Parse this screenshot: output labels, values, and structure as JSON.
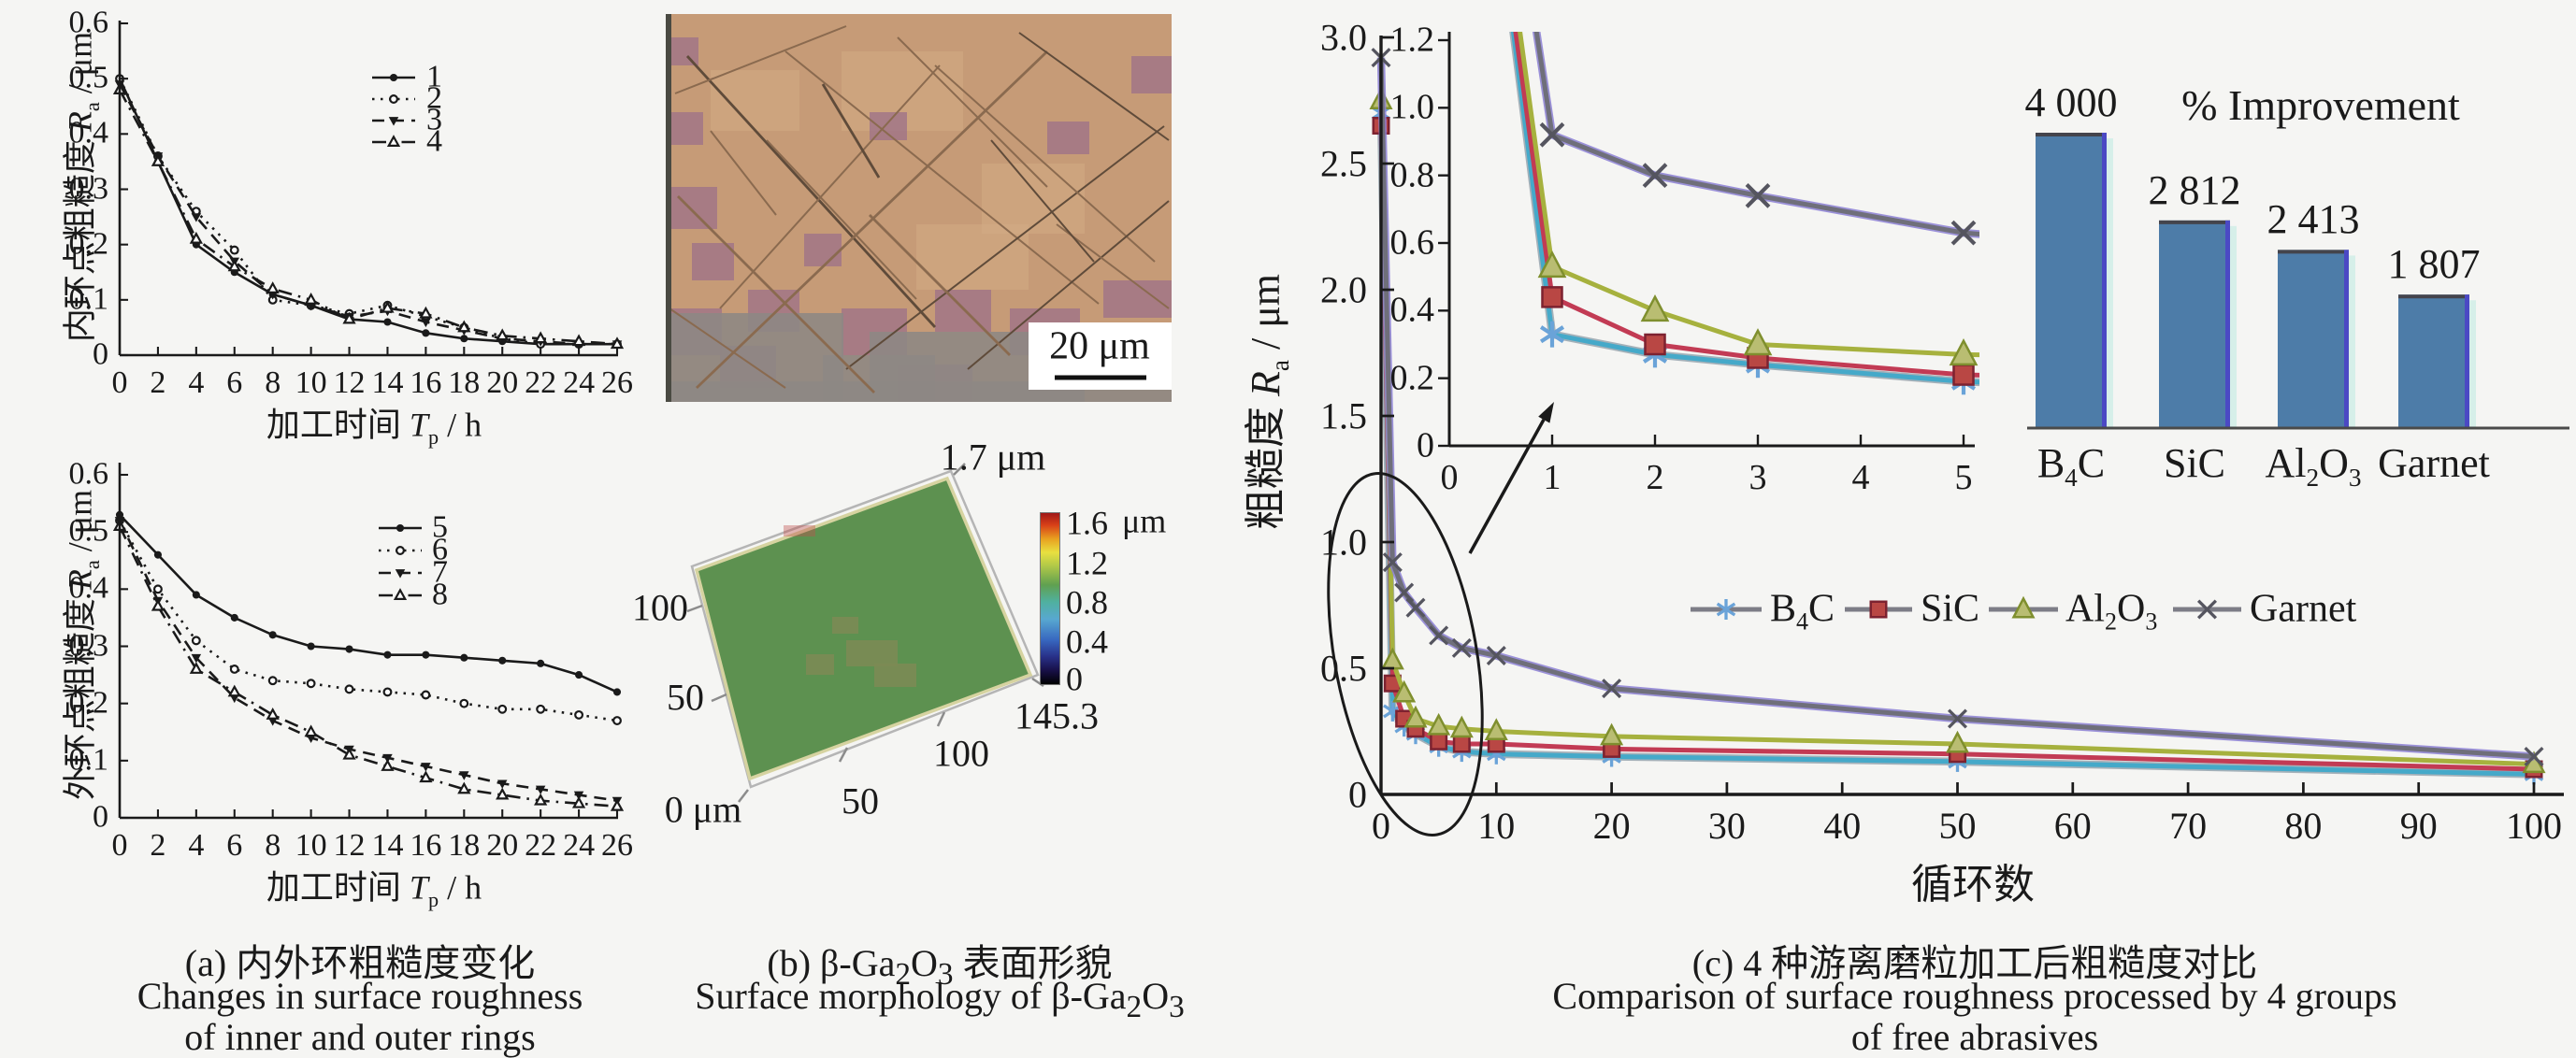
{
  "figure": {
    "background": "#f5f5f3",
    "captions": {
      "a": [
        "(a) 内外环粗糙度变化",
        "Changes in surface roughness",
        "of inner and outer rings"
      ],
      "b": [
        "(b) β-Ga_{2}O_{3} 表面形貌",
        "Surface morphology of β-Ga_{2}O_{3}"
      ],
      "c": [
        "(c) 4 种游离磨粒加工后粗糙度对比",
        "Comparison of surface roughness processed by 4 groups",
        "of free abrasives"
      ]
    }
  },
  "micrograph": {
    "scale_label": "20 μm"
  },
  "surface_plot": {
    "height_label": "1.7 μm",
    "colorbar_ticks": [
      "1.6",
      "1.2",
      "0.8",
      "0.4",
      "0"
    ],
    "colorbar_unit": "μm",
    "x_max_label": "145.3",
    "x_ticks": [
      "50",
      "100"
    ],
    "y_ticks": [
      "100",
      "50"
    ],
    "origin_label": "0 μm"
  },
  "chart_data": [
    {
      "id": "inner-ring-roughness",
      "type": "line",
      "xlabel": "加工时间 ~T~_{p} / h",
      "ylabel": "内环点粗糙度 ~R~_{a} / μm",
      "xlim": [
        0,
        26
      ],
      "ylim": [
        0,
        0.6
      ],
      "xticks": [
        "0",
        "2",
        "4",
        "6",
        "8",
        "10",
        "12",
        "14",
        "16",
        "18",
        "20",
        "22",
        "24",
        "26"
      ],
      "yticks": [
        "0",
        "0.1",
        "0.2",
        "0.3",
        "0.4",
        "0.5",
        "0.6"
      ],
      "legend_position": "upper right",
      "grid": false,
      "x": [
        0,
        2,
        4,
        6,
        8,
        10,
        12,
        14,
        16,
        18,
        20,
        22,
        24,
        26
      ],
      "series": [
        {
          "name": "1",
          "marker": "dot",
          "linestyle": "solid",
          "values": [
            0.5,
            0.35,
            0.2,
            0.15,
            0.11,
            0.09,
            0.065,
            0.06,
            0.04,
            0.03,
            0.025,
            0.02,
            0.02,
            0.02
          ]
        },
        {
          "name": "2",
          "marker": "circle",
          "linestyle": "dotted",
          "values": [
            0.5,
            0.36,
            0.26,
            0.19,
            0.1,
            0.09,
            0.075,
            0.09,
            0.07,
            0.05,
            0.03,
            0.02,
            0.02,
            0.02
          ]
        },
        {
          "name": "3",
          "marker": "tri-down",
          "linestyle": "dashed",
          "values": [
            0.49,
            0.36,
            0.25,
            0.17,
            0.11,
            0.09,
            0.07,
            0.08,
            0.06,
            0.045,
            0.03,
            0.025,
            0.02,
            0.02
          ]
        },
        {
          "name": "4",
          "marker": "tri-up",
          "linestyle": "dashdot",
          "values": [
            0.48,
            0.35,
            0.21,
            0.16,
            0.12,
            0.1,
            0.065,
            0.085,
            0.075,
            0.05,
            0.035,
            0.03,
            0.025,
            0.02
          ]
        }
      ]
    },
    {
      "id": "outer-ring-roughness",
      "type": "line",
      "xlabel": "加工时间 ~T~_{p} / h",
      "ylabel": "外环点粗糙度 ~R~_{a} / μm",
      "xlim": [
        0,
        26
      ],
      "ylim": [
        0,
        0.6
      ],
      "xticks": [
        "0",
        "2",
        "4",
        "6",
        "8",
        "10",
        "12",
        "14",
        "16",
        "18",
        "20",
        "22",
        "24",
        "26"
      ],
      "yticks": [
        "0",
        "0.1",
        "0.2",
        "0.3",
        "0.4",
        "0.5",
        "0.6"
      ],
      "legend_position": "upper right",
      "grid": false,
      "x": [
        0,
        2,
        4,
        6,
        8,
        10,
        12,
        14,
        16,
        18,
        20,
        22,
        24,
        26
      ],
      "series": [
        {
          "name": "5",
          "marker": "dot",
          "linestyle": "solid",
          "values": [
            0.53,
            0.46,
            0.39,
            0.35,
            0.32,
            0.3,
            0.295,
            0.285,
            0.285,
            0.28,
            0.275,
            0.27,
            0.25,
            0.22
          ]
        },
        {
          "name": "6",
          "marker": "circle",
          "linestyle": "dotted",
          "values": [
            0.52,
            0.4,
            0.31,
            0.26,
            0.24,
            0.235,
            0.225,
            0.22,
            0.215,
            0.2,
            0.19,
            0.19,
            0.18,
            0.17
          ]
        },
        {
          "name": "7",
          "marker": "tri-down",
          "linestyle": "dashed",
          "values": [
            0.52,
            0.38,
            0.28,
            0.21,
            0.17,
            0.14,
            0.12,
            0.105,
            0.09,
            0.075,
            0.06,
            0.05,
            0.04,
            0.03
          ]
        },
        {
          "name": "8",
          "marker": "tri-up",
          "linestyle": "dashdot",
          "values": [
            0.51,
            0.37,
            0.26,
            0.22,
            0.18,
            0.15,
            0.11,
            0.09,
            0.07,
            0.05,
            0.04,
            0.03,
            0.025,
            0.02
          ]
        }
      ]
    },
    {
      "id": "free-abrasive-comparison",
      "type": "line",
      "xlabel": "循环数",
      "ylabel": "粗糙度 ~R~_{a} / μm",
      "xlim": [
        0,
        100
      ],
      "ylim": [
        0,
        3.0
      ],
      "xticks": [
        "0",
        "10",
        "20",
        "30",
        "40",
        "50",
        "60",
        "70",
        "80",
        "90",
        "100"
      ],
      "yticks": [
        "0",
        "0.5",
        "1.0",
        "1.5",
        "2.0",
        "2.5",
        "3.0"
      ],
      "legend_position": "center",
      "grid": false,
      "x": [
        0,
        1,
        2,
        3,
        5,
        7,
        10,
        20,
        50,
        100
      ],
      "series": [
        {
          "name": "B_{4}C",
          "marker": "asterisk",
          "linestyle": "solid",
          "color": "#45a9c9",
          "marker_color": "#6aa3d8",
          "shadow": "#97a4ae",
          "values": [
            2.7,
            0.33,
            0.27,
            0.24,
            0.19,
            0.17,
            0.16,
            0.15,
            0.13,
            0.08
          ]
        },
        {
          "name": "SiC",
          "marker": "square",
          "linestyle": "solid",
          "color": "#c23b54",
          "marker_color": "#b94744",
          "marker_edge": "#7d2230",
          "values": [
            2.65,
            0.44,
            0.3,
            0.26,
            0.21,
            0.2,
            0.2,
            0.18,
            0.16,
            0.1
          ]
        },
        {
          "name": "Al_{2}O_{3}",
          "marker": "tri-up-filled",
          "linestyle": "solid",
          "color": "#a6b13e",
          "marker_color": "#b9bd72",
          "marker_edge": "#7f8f2e",
          "values": [
            2.75,
            0.53,
            0.4,
            0.3,
            0.27,
            0.26,
            0.25,
            0.23,
            0.2,
            0.12
          ]
        },
        {
          "name": "Garnet",
          "marker": "x",
          "linestyle": "solid",
          "color": "#6f6f7a",
          "marker_color": "#55555f",
          "shadow": "#8b7fd4",
          "values": [
            2.92,
            0.92,
            0.8,
            0.74,
            0.63,
            0.58,
            0.55,
            0.42,
            0.3,
            0.15
          ]
        }
      ]
    },
    {
      "id": "free-abrasive-zoom-inset",
      "type": "line",
      "xlabel": "",
      "ylabel": "",
      "xlim": [
        0,
        5
      ],
      "ylim": [
        0,
        1.2
      ],
      "xticks": [
        "0",
        "1",
        "2",
        "3",
        "4",
        "5"
      ],
      "yticks": [
        "0",
        "0.2",
        "0.4",
        "0.6",
        "0.8",
        "1.0",
        "1.2"
      ],
      "grid": false,
      "series_from": "free-abrasive-comparison"
    },
    {
      "id": "improvement-bars",
      "type": "bar",
      "title": "% Improvement",
      "categories": [
        "B_{4}C",
        "SiC",
        "Al_{2}O_{3}",
        "Garnet"
      ],
      "values": [
        4000,
        2812,
        2413,
        1807
      ],
      "value_labels": [
        "4 000",
        "2 812",
        "2 413",
        "1 807"
      ],
      "bar_color": "#4d7ca8"
    }
  ]
}
